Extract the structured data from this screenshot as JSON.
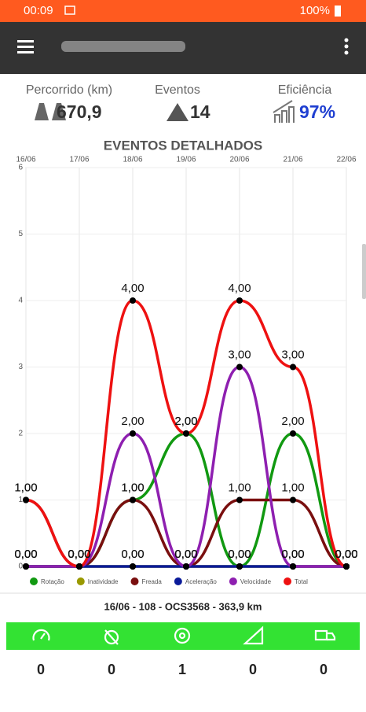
{
  "status_bar": {
    "time": "00:09",
    "battery": "100%"
  },
  "stats": [
    {
      "label": "Percorrido (km)",
      "value": "670,9"
    },
    {
      "label": "Eventos",
      "value": "14"
    },
    {
      "label": "Eficiência",
      "value": "97%"
    }
  ],
  "chart_data": {
    "type": "line",
    "title": "EVENTOS DETALHADOS",
    "categories": [
      "16/06",
      "17/06",
      "18/06",
      "19/06",
      "20/06",
      "21/06",
      "22/06"
    ],
    "ylim": [
      0,
      6
    ],
    "yticks": [
      0,
      1,
      2,
      3,
      4,
      5,
      6
    ],
    "grid": true,
    "legend": "bottom",
    "series": [
      {
        "name": "Rotação",
        "color": "#119911",
        "values": [
          0,
          0,
          1,
          2,
          0,
          2,
          0
        ],
        "value_labels": [
          "0,00",
          "0,00",
          "1,00",
          "2,00",
          "0,00",
          "2,00",
          "0,00"
        ]
      },
      {
        "name": "Inatividade",
        "color": "#999900",
        "values": [
          0,
          0,
          0,
          0,
          0,
          0,
          0
        ],
        "value_labels": [
          "0,00",
          "0,00",
          "0,00",
          "0,00",
          "0,00",
          "0,00",
          "0,00"
        ]
      },
      {
        "name": "Freada",
        "color": "#7a0f0f",
        "values": [
          1,
          0,
          1,
          0,
          1,
          1,
          0
        ],
        "value_labels": [
          "1,00",
          "0,00",
          "1,00",
          "0,00",
          "1,00",
          "1,00",
          "0,00"
        ]
      },
      {
        "name": "Aceleração",
        "color": "#0a1a99",
        "values": [
          0,
          0,
          0,
          0,
          0,
          0,
          0
        ],
        "value_labels": [
          "0,00",
          "0,00",
          "0,00",
          "0,00",
          "0,00",
          "0,00",
          "0,00"
        ]
      },
      {
        "name": "Velocidade",
        "color": "#8e1fb0",
        "values": [
          0,
          0,
          2,
          0,
          3,
          0,
          0
        ],
        "value_labels": [
          "0,00",
          "0,00",
          "2,00",
          "0,00",
          "3,00",
          "0,00",
          "0,00"
        ]
      },
      {
        "name": "Total",
        "color": "#ee1111",
        "values": [
          1,
          0,
          4,
          2,
          4,
          3,
          0
        ],
        "value_labels": [
          "1,00",
          "0,00",
          "4,00",
          "2,00",
          "4,00",
          "3,00",
          "0,00"
        ]
      }
    ]
  },
  "trip": "16/06 - 108 - OCS3568 - 363,9 km",
  "counters": [
    "0",
    "0",
    "1",
    "0",
    "0"
  ]
}
